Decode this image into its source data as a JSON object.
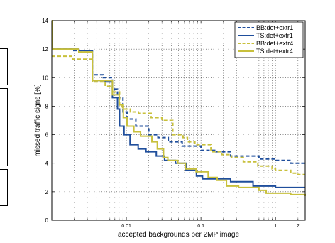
{
  "chart_data": {
    "type": "line",
    "xlabel": "accepted backgrounds per 2MP image",
    "ylabel": "missed traffic signs [%]",
    "xscale": "log",
    "xlim": [
      0.001,
      2.5
    ],
    "ylim": [
      0,
      14
    ],
    "grid": true,
    "legend_position": "top-right",
    "x_tick_labels": [
      {
        "value": 0.01,
        "label": "0.01"
      },
      {
        "value": 0.1,
        "label": "0.1"
      },
      {
        "value": 1,
        "label": "1"
      },
      {
        "value": 2,
        "label": "2"
      }
    ],
    "y_ticks": [
      0,
      2,
      4,
      6,
      8,
      10,
      12,
      14
    ],
    "series": [
      {
        "name": "BB:det+extr1",
        "color": "#1f4e9c",
        "dash": "dashed",
        "points": [
          [
            0.001,
            12.0
          ],
          [
            0.0019,
            11.9
          ],
          [
            0.0035,
            10.2
          ],
          [
            0.0049,
            10.0
          ],
          [
            0.0065,
            9.2
          ],
          [
            0.0076,
            8.6
          ],
          [
            0.009,
            7.6
          ],
          [
            0.0102,
            7.1
          ],
          [
            0.0134,
            6.6
          ],
          [
            0.02,
            6.0
          ],
          [
            0.0265,
            5.8
          ],
          [
            0.0365,
            5.5
          ],
          [
            0.056,
            5.2
          ],
          [
            0.1,
            4.9
          ],
          [
            0.16,
            4.8
          ],
          [
            0.25,
            4.5
          ],
          [
            0.6,
            4.3
          ],
          [
            1.0,
            4.2
          ],
          [
            1.6,
            4.0
          ],
          [
            2.5,
            4.0
          ]
        ]
      },
      {
        "name": "TS:det+extr1",
        "color": "#1f4e9c",
        "dash": "solid",
        "points": [
          [
            0.001,
            12.0
          ],
          [
            0.0023,
            11.9
          ],
          [
            0.0035,
            9.8
          ],
          [
            0.0052,
            9.7
          ],
          [
            0.0065,
            8.6
          ],
          [
            0.0076,
            7.8
          ],
          [
            0.0081,
            6.6
          ],
          [
            0.0093,
            6.0
          ],
          [
            0.0112,
            5.3
          ],
          [
            0.0144,
            5.0
          ],
          [
            0.0183,
            4.8
          ],
          [
            0.0252,
            4.5
          ],
          [
            0.0325,
            4.2
          ],
          [
            0.0455,
            4.0
          ],
          [
            0.063,
            3.5
          ],
          [
            0.087,
            3.1
          ],
          [
            0.105,
            2.9
          ],
          [
            0.17,
            2.9
          ],
          [
            0.25,
            2.7
          ],
          [
            0.5,
            2.4
          ],
          [
            0.7,
            2.4
          ],
          [
            1.0,
            2.3
          ],
          [
            2.5,
            2.3
          ]
        ]
      },
      {
        "name": "BB:det+extr4",
        "color": "#c8c03c",
        "dash": "dashed",
        "points": [
          [
            0.001,
            11.5
          ],
          [
            0.0019,
            11.3
          ],
          [
            0.0035,
            9.7
          ],
          [
            0.0052,
            9.4
          ],
          [
            0.0065,
            9.0
          ],
          [
            0.0081,
            8.0
          ],
          [
            0.0089,
            7.8
          ],
          [
            0.0113,
            7.6
          ],
          [
            0.0145,
            7.5
          ],
          [
            0.0215,
            7.2
          ],
          [
            0.03,
            7.0
          ],
          [
            0.042,
            6.0
          ],
          [
            0.0575,
            5.8
          ],
          [
            0.066,
            5.5
          ],
          [
            0.083,
            5.3
          ],
          [
            0.136,
            4.8
          ],
          [
            0.19,
            4.6
          ],
          [
            0.255,
            4.4
          ],
          [
            0.37,
            4.1
          ],
          [
            0.58,
            3.8
          ],
          [
            0.9,
            3.6
          ],
          [
            1.0,
            3.5
          ],
          [
            1.6,
            3.3
          ],
          [
            2.0,
            3.2
          ],
          [
            2.5,
            3.2
          ]
        ]
      },
      {
        "name": "TS:det+extr4",
        "color": "#c8c03c",
        "dash": "solid",
        "points": [
          [
            0.001,
            14.0
          ],
          [
            0.00102,
            12.0
          ],
          [
            0.0023,
            11.8
          ],
          [
            0.0035,
            9.8
          ],
          [
            0.0052,
            9.8
          ],
          [
            0.0065,
            8.8
          ],
          [
            0.008,
            8.1
          ],
          [
            0.0091,
            7.2
          ],
          [
            0.0102,
            6.6
          ],
          [
            0.0126,
            6.2
          ],
          [
            0.0155,
            5.9
          ],
          [
            0.022,
            5.5
          ],
          [
            0.026,
            5.0
          ],
          [
            0.0315,
            4.4
          ],
          [
            0.036,
            4.2
          ],
          [
            0.049,
            4.0
          ],
          [
            0.062,
            3.6
          ],
          [
            0.086,
            3.4
          ],
          [
            0.125,
            3.0
          ],
          [
            0.165,
            2.8
          ],
          [
            0.22,
            2.4
          ],
          [
            0.32,
            2.3
          ],
          [
            0.6,
            2.1
          ],
          [
            0.75,
            1.9
          ],
          [
            1.6,
            1.8
          ],
          [
            2.0,
            1.8
          ],
          [
            2.5,
            1.7
          ]
        ]
      }
    ]
  }
}
